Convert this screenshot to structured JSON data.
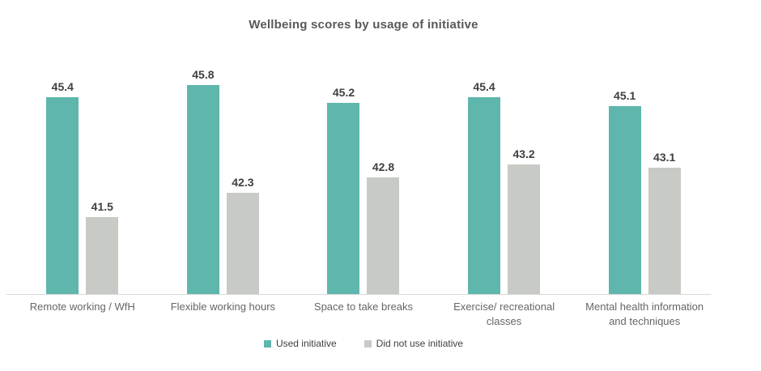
{
  "title": "Wellbeing scores by usage of initiative",
  "colors": {
    "used_initiative": "#5FB6AC",
    "did_not_use_initiative": "#C8CAC6",
    "title_text": "#595959",
    "value_label_text": "#404040",
    "category_label_text": "#666666",
    "axis_line": "#D9D9D9",
    "background": "#FFFFFF"
  },
  "legend": {
    "position": "bottom",
    "items": [
      {
        "label": "Used initiative",
        "color": "#5FB6AC"
      },
      {
        "label": "Did not use initiative",
        "color": "#C8CAC6"
      }
    ]
  },
  "chart_data": {
    "type": "bar",
    "title": "Wellbeing scores by usage of initiative",
    "categories": [
      "Remote working / WfH",
      "Flexible working hours",
      "Space to take breaks",
      "Exercise/ recreational classes",
      "Mental health information and techniques"
    ],
    "series": [
      {
        "name": "Used initiative",
        "color": "#5FB6AC",
        "values": [
          45.4,
          45.8,
          45.2,
          45.4,
          45.1
        ]
      },
      {
        "name": "Did not use initiative",
        "color": "#C8CAC6",
        "values": [
          41.5,
          42.3,
          42.8,
          43.2,
          43.1
        ]
      }
    ],
    "xlabel": "",
    "ylabel": "",
    "ylim": [
      39,
      46.5
    ],
    "y_axis_visible": false,
    "grid": false,
    "data_labels": true,
    "legend_position": "bottom"
  }
}
